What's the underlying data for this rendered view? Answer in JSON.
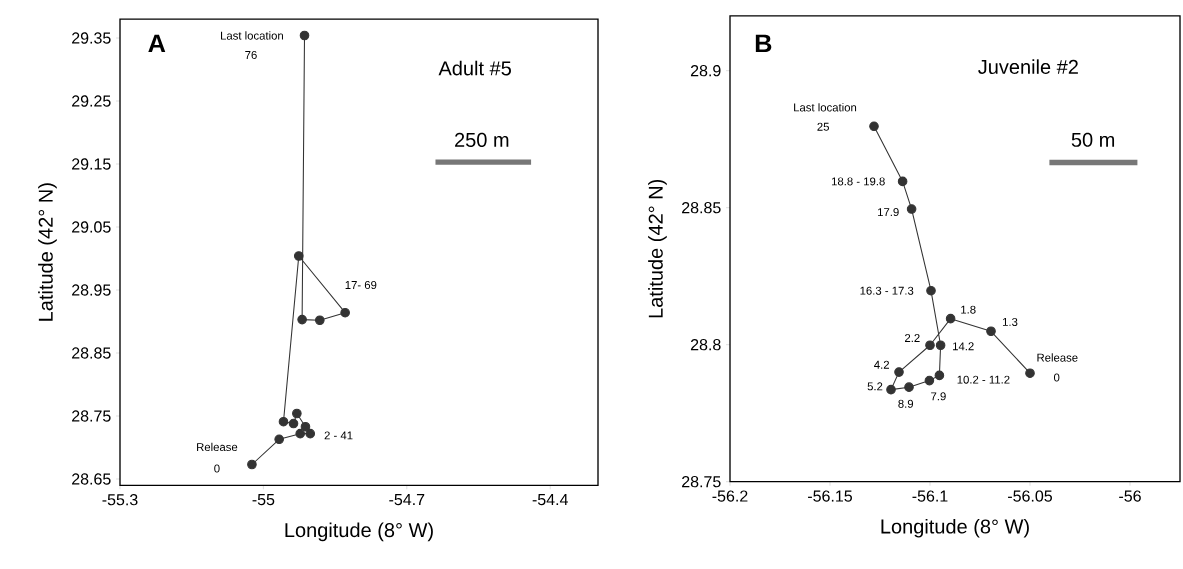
{
  "chart_data": [
    {
      "type": "line",
      "marker": "circle",
      "xlabel": "Longitude (8° W)",
      "ylabel": "Latitude (42° N)",
      "xlim": [
        -55.3,
        -54.3
      ],
      "ylim": [
        28.64,
        29.38
      ],
      "xticks": [
        -55.3,
        -55,
        -54.7,
        -54.4
      ],
      "yticks": [
        28.65,
        28.75,
        28.85,
        28.95,
        29.05,
        29.15,
        29.25,
        29.35
      ],
      "series": [
        {
          "color": "#333333",
          "x": [
            -55.024,
            -54.967,
            -54.923,
            -54.902,
            -54.912,
            -54.93,
            -54.937,
            -54.958,
            -54.926,
            -54.829,
            -54.882,
            -54.919,
            -54.914
          ],
          "values": [
            28.673,
            28.713,
            28.722,
            28.722,
            28.733,
            28.754,
            28.738,
            28.741,
            29.004,
            28.914,
            28.902,
            28.903,
            29.354
          ]
        },
        {
          "color": "#777777",
          "marker": "none",
          "x": [
            -54.64,
            -54.44
          ],
          "values": [
            29.153,
            29.153
          ]
        }
      ],
      "annotations": [
        "A",
        "Adult #5",
        "250 m",
        {
          "text": "Last location",
          "x": -54.914,
          "y": 29.354
        },
        "76",
        {
          "text": "17- 69",
          "x": -54.829,
          "y": 28.914
        },
        {
          "text": "2 - 41",
          "x": -54.902,
          "y": 28.722
        },
        {
          "text": "Release",
          "x": -55.024,
          "y": 28.673
        },
        {
          "text": "0",
          "x": -55.024,
          "y": 28.673
        }
      ]
    },
    {
      "type": "line",
      "marker": "circle",
      "xlabel": "Longitude (8° W)",
      "ylabel": "Latitude (42° N)",
      "xlim": [
        -56.2,
        -55.975
      ],
      "ylim": [
        28.75,
        28.92
      ],
      "xticks": [
        -56.2,
        -56.15,
        -56.1,
        -56.05,
        -56
      ],
      "yticks": [
        28.75,
        28.8,
        28.85,
        28.9
      ],
      "series": [
        {
          "color": "#333333",
          "x": [
            -56.05,
            -56.0695,
            -56.0897,
            -56.1,
            -56.1155,
            -56.1195,
            -56.1105,
            -56.1003,
            -56.0953,
            -56.0947,
            -56.0995,
            -56.1092,
            -56.1137,
            -56.128
          ],
          "values": [
            28.7896,
            28.8049,
            28.8095,
            28.7998,
            28.79,
            28.7836,
            28.7845,
            28.7869,
            28.7888,
            28.7998,
            28.8197,
            28.8495,
            28.8596,
            28.8797
          ]
        },
        {
          "color": "#777777",
          "marker": "none",
          "x": [
            -56.0403,
            -55.9963
          ],
          "values": [
            28.8665,
            28.8665
          ]
        }
      ],
      "annotations": [
        "B",
        "Juvenile #2",
        "50 m",
        {
          "text": "Last location",
          "x": -56.128,
          "y": 28.8797
        },
        "25",
        {
          "text": "18.8 - 19.8",
          "x": -56.1137,
          "y": 28.8596
        },
        {
          "text": "17.9",
          "x": -56.1092,
          "y": 28.8495
        },
        {
          "text": "16.3 - 17.3",
          "x": -56.0995,
          "y": 28.8197
        },
        {
          "text": "1.8",
          "x": -56.0897,
          "y": 28.8095
        },
        {
          "text": "1.3",
          "x": -56.0695,
          "y": 28.8049
        },
        {
          "text": "2.2",
          "x": -56.1,
          "y": 28.7998
        },
        {
          "text": "14.2",
          "x": -56.0947,
          "y": 28.7998
        },
        {
          "text": "Release",
          "x": -56.05,
          "y": 28.7896
        },
        {
          "text": "0",
          "x": -56.05,
          "y": 28.7896
        },
        {
          "text": "4.2",
          "x": -56.1155,
          "y": 28.79
        },
        {
          "text": "5.2",
          "x": -56.1195,
          "y": 28.7836
        },
        {
          "text": "10.2 - 11.2",
          "x": -56.0953,
          "y": 28.7888
        },
        {
          "text": "7.9",
          "x": -56.1003,
          "y": 28.7869
        },
        {
          "text": "8.9",
          "x": -56.1105,
          "y": 28.7845
        }
      ]
    }
  ]
}
